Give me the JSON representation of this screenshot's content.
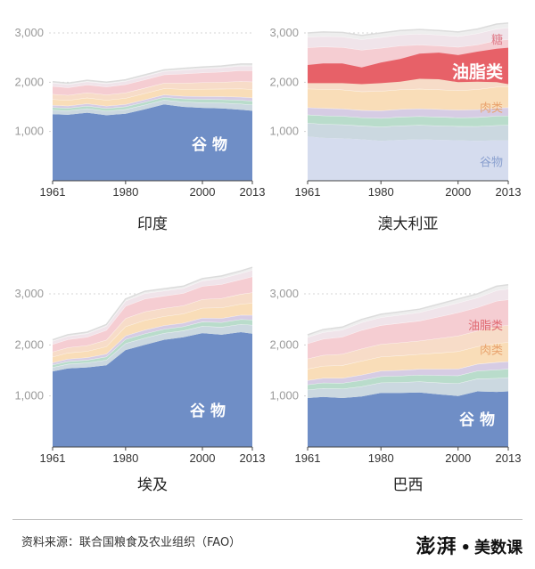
{
  "colors": {
    "cereal": "#6f8ec6",
    "cereal_light": "#d5dcee",
    "layers": [
      "#cbd8e0",
      "#b9dccb",
      "#d6cce4",
      "#f9ddb8",
      "#f7dcc8",
      "#f5cdd2",
      "#f0e4ea",
      "#eeeeee"
    ],
    "oils_strong": "#e76168",
    "label_white": "#ffffff",
    "label_oils": "#e06a72",
    "label_meat": "#e9a36e",
    "label_sugar": "#e07c8a",
    "label_cereal": "#8aa0cf",
    "axis_text": "#9a9a9a",
    "grid": "#d4d4d4"
  },
  "chart_data": [
    {
      "type": "area",
      "title": "印度",
      "x": [
        1961,
        1965,
        1970,
        1975,
        1980,
        1985,
        1990,
        1995,
        2000,
        2005,
        2010,
        2013
      ],
      "cereal": [
        1350,
        1340,
        1380,
        1330,
        1360,
        1450,
        1550,
        1500,
        1480,
        1470,
        1440,
        1420
      ],
      "total": [
        2010,
        1980,
        2040,
        2000,
        2050,
        2150,
        2250,
        2280,
        2310,
        2330,
        2370,
        2370
      ],
      "xticks": [
        "1961",
        "1980",
        "2000",
        "2013"
      ],
      "ylim": [
        0,
        3000
      ],
      "yticks": [
        "3,000",
        "2,000",
        "1,000"
      ],
      "labels": {
        "cereal": "谷 物"
      }
    },
    {
      "type": "area",
      "title": "澳大利亚",
      "x": [
        1961,
        1965,
        1970,
        1975,
        1980,
        1985,
        1990,
        1995,
        2000,
        2005,
        2010,
        2013
      ],
      "cereal": [
        900,
        870,
        860,
        840,
        810,
        830,
        840,
        830,
        820,
        810,
        820,
        820
      ],
      "total": [
        3000,
        3020,
        3010,
        2950,
        3000,
        3050,
        3070,
        3050,
        3020,
        3080,
        3180,
        3200
      ],
      "oils_bottom": [
        1980,
        1980,
        1980,
        1960,
        1980,
        2010,
        2070,
        2060,
        2000,
        2010,
        2000,
        1960
      ],
      "oils_top": [
        2350,
        2380,
        2380,
        2300,
        2400,
        2470,
        2580,
        2600,
        2550,
        2620,
        2680,
        2700
      ],
      "xticks": [
        "1961",
        "1980",
        "2000",
        "2013"
      ],
      "ylim": [
        0,
        3000
      ],
      "yticks": [
        "3,000",
        "2,000",
        "1,000"
      ],
      "labels": {
        "sugar": "糖",
        "oils": "油脂类",
        "meat": "肉类",
        "cereal": "谷物"
      }
    },
    {
      "type": "area",
      "title": "埃及",
      "x": [
        1961,
        1965,
        1970,
        1975,
        1980,
        1985,
        1990,
        1995,
        2000,
        2005,
        2010,
        2013
      ],
      "cereal": [
        1480,
        1540,
        1560,
        1600,
        1900,
        2000,
        2100,
        2150,
        2230,
        2200,
        2250,
        2220
      ],
      "total": [
        2100,
        2200,
        2250,
        2400,
        2900,
        3050,
        3100,
        3150,
        3300,
        3350,
        3450,
        3520
      ],
      "xticks": [
        "1961",
        "1980",
        "2000",
        "2013"
      ],
      "ylim": [
        0,
        3000
      ],
      "yticks": [
        "3,000",
        "2,000",
        "1,000"
      ],
      "labels": {
        "cereal": "谷 物"
      }
    },
    {
      "type": "area",
      "title": "巴西",
      "x": [
        1961,
        1965,
        1970,
        1975,
        1980,
        1985,
        1990,
        1995,
        2000,
        2005,
        2010,
        2013
      ],
      "cereal": [
        960,
        980,
        960,
        990,
        1060,
        1060,
        1070,
        1030,
        1000,
        1090,
        1080,
        1090
      ],
      "total": [
        2200,
        2300,
        2350,
        2500,
        2600,
        2650,
        2700,
        2800,
        2900,
        3000,
        3150,
        3180
      ],
      "xticks": [
        "1961",
        "1980",
        "2000",
        "2013"
      ],
      "ylim": [
        0,
        3000
      ],
      "yticks": [
        "3,000",
        "2,000",
        "1,000"
      ],
      "labels": {
        "oils": "油脂类",
        "meat": "肉类",
        "cereal": "谷 物"
      }
    }
  ],
  "footer": {
    "source": "资料来源：联合国粮食及农业组织（FAO）",
    "logo_mark": "澎湃",
    "logo_text": "美数课"
  }
}
